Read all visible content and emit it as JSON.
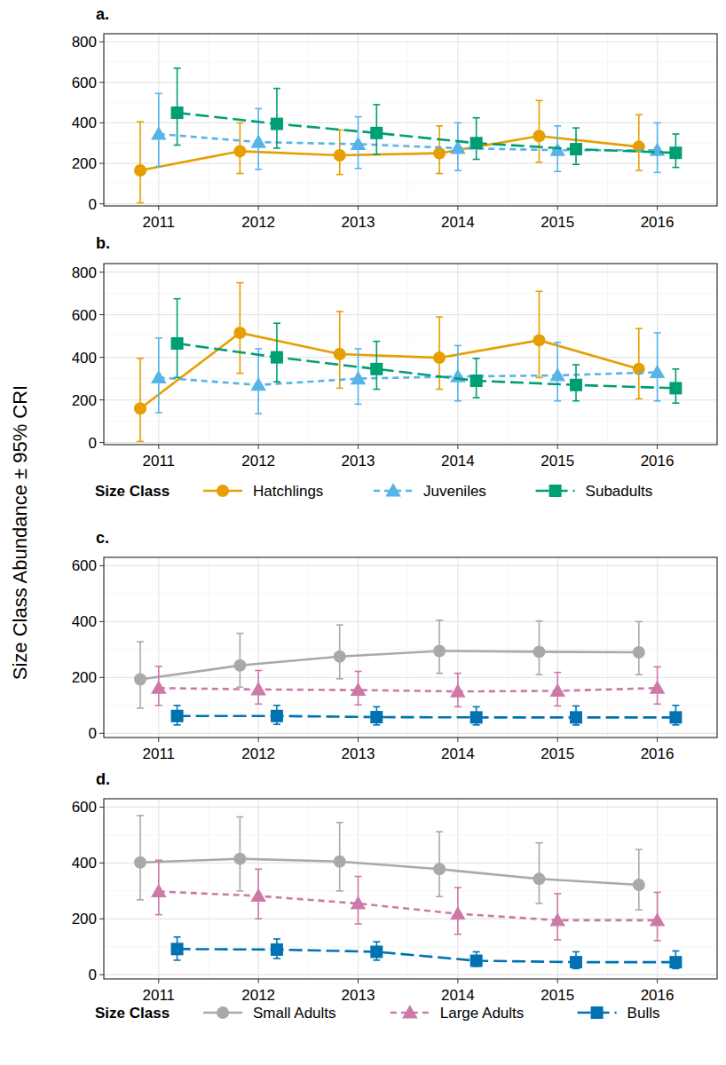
{
  "chart_data": [
    {
      "type": "line",
      "title": "a.",
      "y_label": "Size Class Abundance ± 95% CRI",
      "x": [
        2011,
        2012,
        2013,
        2014,
        2015,
        2016
      ],
      "xlim": [
        2010.45,
        2016.6
      ],
      "xticks": [
        2011,
        2012,
        2013,
        2014,
        2015,
        2016
      ],
      "ylim": [
        -10,
        840
      ],
      "yticks": [
        0,
        200,
        400,
        600,
        800
      ],
      "grid": true,
      "series": [
        {
          "name": "Hatchlings",
          "color": "#E69F00",
          "marker": "circle",
          "line_style": "solid",
          "values": [
            165,
            260,
            240,
            250,
            335,
            282
          ],
          "lower": [
            5,
            150,
            145,
            150,
            205,
            165
          ],
          "upper": [
            405,
            400,
            365,
            385,
            510,
            440
          ]
        },
        {
          "name": "Juveniles",
          "color": "#56B4E9",
          "marker": "triangle",
          "line_style": "dashed",
          "values": [
            345,
            305,
            295,
            275,
            265,
            265
          ],
          "lower": [
            185,
            170,
            175,
            165,
            160,
            155
          ],
          "upper": [
            545,
            470,
            430,
            400,
            385,
            400
          ]
        },
        {
          "name": "Subadults",
          "color": "#009E73",
          "marker": "square",
          "line_style": "longdash",
          "values": [
            450,
            395,
            350,
            300,
            270,
            252
          ],
          "lower": [
            290,
            275,
            245,
            220,
            195,
            180
          ],
          "upper": [
            670,
            570,
            490,
            425,
            375,
            345
          ]
        }
      ]
    },
    {
      "type": "line",
      "title": "b.",
      "legend": "bottom",
      "legend_title": "Size Class",
      "x": [
        2011,
        2012,
        2013,
        2014,
        2015,
        2016
      ],
      "xlim": [
        2010.45,
        2016.6
      ],
      "xticks": [
        2011,
        2012,
        2013,
        2014,
        2015,
        2016
      ],
      "ylim": [
        -10,
        840
      ],
      "yticks": [
        0,
        200,
        400,
        600,
        800
      ],
      "grid": true,
      "series": [
        {
          "name": "Hatchlings",
          "color": "#E69F00",
          "marker": "circle",
          "line_style": "solid",
          "values": [
            160,
            515,
            415,
            398,
            480,
            345
          ],
          "lower": [
            5,
            325,
            255,
            250,
            305,
            205
          ],
          "upper": [
            395,
            750,
            615,
            590,
            710,
            535
          ]
        },
        {
          "name": "Juveniles",
          "color": "#56B4E9",
          "marker": "triangle",
          "line_style": "dashed",
          "values": [
            305,
            270,
            300,
            310,
            315,
            330
          ],
          "lower": [
            140,
            135,
            180,
            195,
            195,
            195
          ],
          "upper": [
            490,
            440,
            440,
            455,
            470,
            515
          ]
        },
        {
          "name": "Subadults",
          "color": "#009E73",
          "marker": "square",
          "line_style": "longdash",
          "values": [
            465,
            400,
            345,
            290,
            270,
            255
          ],
          "lower": [
            305,
            285,
            250,
            210,
            195,
            185
          ],
          "upper": [
            675,
            560,
            475,
            395,
            365,
            345
          ]
        }
      ]
    },
    {
      "type": "line",
      "title": "c.",
      "x": [
        2011,
        2012,
        2013,
        2014,
        2015,
        2016
      ],
      "xlim": [
        2010.45,
        2016.6
      ],
      "xticks": [
        2011,
        2012,
        2013,
        2014,
        2015,
        2016
      ],
      "ylim": [
        -15,
        630
      ],
      "yticks": [
        0,
        200,
        400,
        600
      ],
      "grid": true,
      "series": [
        {
          "name": "Small Adults",
          "color": "#A9A9A9",
          "marker": "circle",
          "line_style": "solid",
          "values": [
            193,
            243,
            275,
            295,
            292,
            290
          ],
          "lower": [
            90,
            165,
            195,
            215,
            210,
            210
          ],
          "upper": [
            328,
            358,
            388,
            405,
            402,
            400
          ]
        },
        {
          "name": "Large Adults",
          "color": "#CC79A7",
          "marker": "triangle",
          "line_style": "dashed",
          "values": [
            162,
            157,
            155,
            150,
            152,
            162
          ],
          "lower": [
            100,
            105,
            102,
            95,
            98,
            105
          ],
          "upper": [
            240,
            225,
            222,
            215,
            218,
            238
          ]
        },
        {
          "name": "Bulls",
          "color": "#0072B2",
          "marker": "square",
          "line_style": "longdash",
          "values": [
            62,
            62,
            58,
            57,
            57,
            57
          ],
          "lower": [
            30,
            32,
            30,
            30,
            30,
            30
          ],
          "upper": [
            100,
            100,
            95,
            95,
            98,
            100
          ]
        }
      ]
    },
    {
      "type": "line",
      "title": "d.",
      "legend": "bottom",
      "legend_title": "Size Class",
      "x": [
        2011,
        2012,
        2013,
        2014,
        2015,
        2016
      ],
      "xlim": [
        2010.45,
        2016.6
      ],
      "xticks": [
        2011,
        2012,
        2013,
        2014,
        2015,
        2016
      ],
      "ylim": [
        -15,
        630
      ],
      "yticks": [
        0,
        200,
        400,
        600
      ],
      "grid": true,
      "series": [
        {
          "name": "Small Adults",
          "color": "#A9A9A9",
          "marker": "circle",
          "line_style": "solid",
          "values": [
            402,
            415,
            405,
            378,
            343,
            322
          ],
          "lower": [
            268,
            300,
            300,
            280,
            255,
            232
          ],
          "upper": [
            570,
            565,
            545,
            512,
            472,
            448
          ]
        },
        {
          "name": "Large Adults",
          "color": "#CC79A7",
          "marker": "triangle",
          "line_style": "dashed",
          "values": [
            298,
            282,
            255,
            218,
            195,
            195
          ],
          "lower": [
            215,
            200,
            182,
            145,
            125,
            122
          ],
          "upper": [
            410,
            378,
            352,
            312,
            290,
            295
          ]
        },
        {
          "name": "Bulls",
          "color": "#0072B2",
          "marker": "square",
          "line_style": "longdash",
          "values": [
            92,
            90,
            82,
            50,
            45,
            45
          ],
          "lower": [
            52,
            58,
            52,
            30,
            22,
            22
          ],
          "upper": [
            135,
            128,
            118,
            82,
            82,
            85
          ]
        }
      ]
    }
  ]
}
